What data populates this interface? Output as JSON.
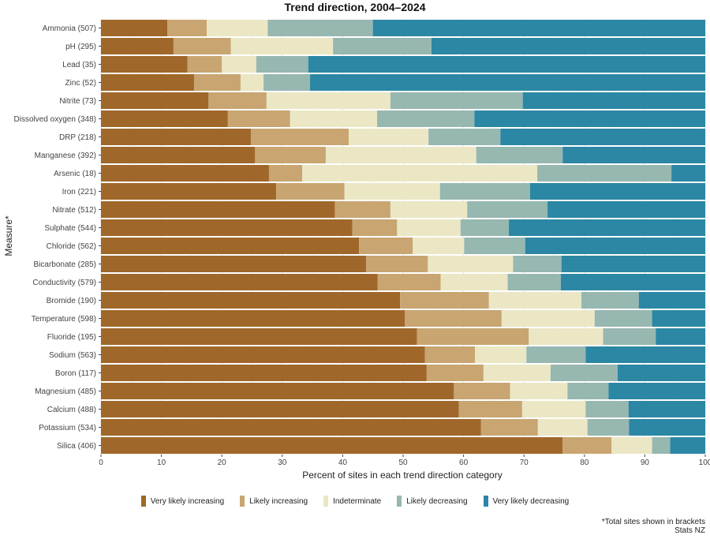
{
  "chart_data": {
    "type": "bar",
    "orientation": "horizontal",
    "stacked": true,
    "title": "Trend direction, 2004–2024",
    "xlabel": "Percent of sites in each trend direction category",
    "ylabel": "Measure*",
    "xlim": [
      0,
      100
    ],
    "xticks": [
      "0",
      "10",
      "20",
      "30",
      "40",
      "50",
      "60",
      "70",
      "80",
      "90",
      "100"
    ],
    "grid": true,
    "legend_position": "bottom",
    "categories": [
      "Ammonia (507)",
      "pH (295)",
      "Lead (35)",
      "Zinc (52)",
      "Nitrite (73)",
      "Dissolved oxygen (348)",
      "DRP (218)",
      "Manganese (392)",
      "Arsenic (18)",
      "Iron (221)",
      "Nitrate (512)",
      "Sulphate (544)",
      "Chloride (562)",
      "Bicarbonate (285)",
      "Conductivity (579)",
      "Bromide (190)",
      "Temperature (598)",
      "Fluoride (195)",
      "Sodium (563)",
      "Boron (117)",
      "Magnesium (485)",
      "Calcium (488)",
      "Potassium (534)",
      "Silica (406)"
    ],
    "series": [
      {
        "name": "Very likely increasing",
        "color": "#a0672a",
        "values": [
          11,
          12,
          14.3,
          15.4,
          17.8,
          21,
          24.8,
          25.5,
          27.8,
          29,
          38.7,
          41.6,
          42.7,
          43.9,
          45.8,
          49.5,
          50.3,
          52.3,
          53.6,
          53.9,
          58.4,
          59.2,
          62.9,
          76.4
        ]
      },
      {
        "name": "Likely increasing",
        "color": "#c8a571",
        "values": [
          6.5,
          9.5,
          5.7,
          7.7,
          9.6,
          10.3,
          16.2,
          11.7,
          5.5,
          11.3,
          9.2,
          7.4,
          8.9,
          10.2,
          10.4,
          14.7,
          16,
          18.5,
          8.3,
          9.4,
          9.3,
          10.5,
          9.4,
          8.1
        ]
      },
      {
        "name": "Indeterminate",
        "color": "#ebe7c5",
        "values": [
          10.1,
          16.9,
          5.7,
          3.8,
          20.5,
          14.4,
          13.2,
          24.9,
          38.9,
          15.8,
          12.7,
          10.5,
          8.5,
          14.1,
          11.1,
          15.3,
          15.4,
          12.3,
          8.5,
          11.1,
          9.5,
          10.5,
          8.2,
          6.7
        ]
      },
      {
        "name": "Likely decreasing",
        "color": "#97b7b1",
        "values": [
          17.4,
          16.3,
          8.6,
          7.7,
          21.9,
          16.1,
          11.9,
          14.3,
          22.2,
          14.9,
          13.3,
          8,
          10.1,
          8,
          8.8,
          9.5,
          9.5,
          8.7,
          9.8,
          11.1,
          6.8,
          7.1,
          6.9,
          3
        ]
      },
      {
        "name": "Very likely decreasing",
        "color": "#2b87a4",
        "values": [
          55,
          45.3,
          65.7,
          65.4,
          30.2,
          38.2,
          33.9,
          23.6,
          5.6,
          29,
          26.1,
          32.5,
          29.8,
          23.8,
          23.9,
          11,
          8.8,
          8.2,
          19.8,
          14.5,
          16,
          12.7,
          12.6,
          5.8
        ]
      }
    ]
  },
  "footnote": {
    "line1": "*Total sites shown in brackets",
    "line2": "Stats NZ"
  }
}
